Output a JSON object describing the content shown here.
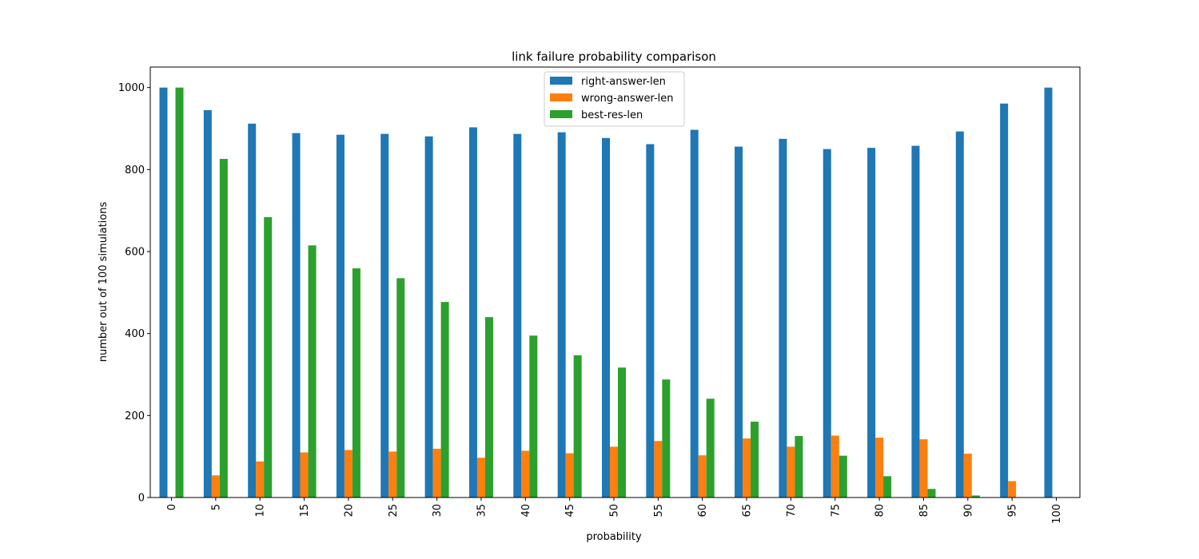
{
  "chart_data": {
    "type": "bar",
    "title": "link failure probability comparison",
    "xlabel": "probability",
    "ylabel": "number out of 100 simulations",
    "ylim": [
      0,
      1050
    ],
    "yticks": [
      0,
      200,
      400,
      600,
      800,
      1000
    ],
    "categories": [
      "0",
      "5",
      "10",
      "15",
      "20",
      "25",
      "30",
      "35",
      "40",
      "45",
      "50",
      "55",
      "60",
      "65",
      "70",
      "75",
      "80",
      "85",
      "90",
      "95",
      "100"
    ],
    "series": [
      {
        "name": "right-answer-len",
        "color": "#1f77b4",
        "values": [
          1000,
          945,
          912,
          889,
          885,
          887,
          881,
          903,
          887,
          891,
          877,
          862,
          897,
          856,
          875,
          850,
          853,
          858,
          893,
          961,
          1000
        ]
      },
      {
        "name": "wrong-answer-len",
        "color": "#ff7f0e",
        "values": [
          0,
          54,
          88,
          110,
          116,
          112,
          119,
          97,
          114,
          108,
          124,
          138,
          103,
          144,
          124,
          151,
          146,
          142,
          107,
          40,
          0
        ]
      },
      {
        "name": "best-res-len",
        "color": "#2ca02c",
        "values": [
          1000,
          826,
          684,
          615,
          559,
          535,
          477,
          440,
          395,
          347,
          317,
          288,
          241,
          185,
          150,
          102,
          52,
          21,
          5,
          1,
          0
        ]
      }
    ],
    "legend_position": "upper-center",
    "grid": false,
    "tick_label_rotation": "vertical"
  }
}
